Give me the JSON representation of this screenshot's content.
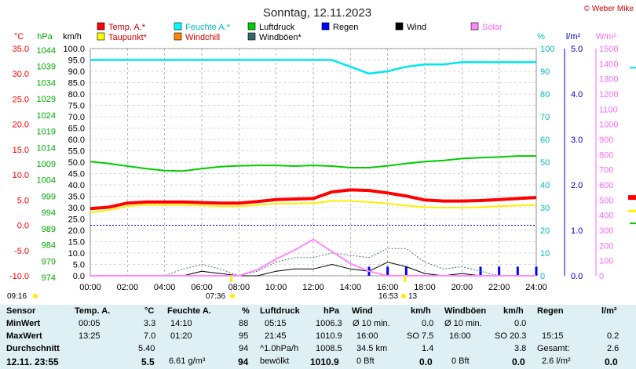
{
  "title": "Sonntag, 12.11.2023",
  "credit": "© Weber Mike",
  "legend": [
    {
      "name": "Temp. A.*",
      "color": "#ff0000"
    },
    {
      "name": "Feuchte A.*",
      "color": "#00ffff"
    },
    {
      "name": "Luftdruck",
      "color": "#00cc00"
    },
    {
      "name": "Regen",
      "color": "#0000ff"
    },
    {
      "name": "Wind",
      "color": "#000000"
    },
    {
      "name": "Solar",
      "color": "#ff88ff"
    },
    {
      "name": "Taupunkt*",
      "color": "#ffff00"
    },
    {
      "name": "Windchill",
      "color": "#ff8800"
    },
    {
      "name": "Windböen*",
      "color": "#336666"
    }
  ],
  "axis_units": {
    "temp": "°C",
    "pressure": "hPa",
    "wind": "km/h",
    "humidity": "%",
    "rain": "l/m²",
    "solar": "W/m²"
  },
  "chart_data": {
    "type": "line",
    "x_ticks": [
      "00:00",
      "02:00",
      "04:00",
      "06:00",
      "08:00",
      "10:00",
      "12:00",
      "14:00",
      "16:00",
      "18:00",
      "20:00",
      "22:00",
      "24:00"
    ],
    "temp_ticks": [
      "35.0",
      "30.0",
      "25.0",
      "20.0",
      "15.0",
      "10.0",
      "5.0",
      "0.0",
      "-5.0",
      "-10.0"
    ],
    "pressure_ticks": [
      "1044",
      "1039",
      "1034",
      "1029",
      "1024",
      "1019",
      "1014",
      "1009",
      "1004",
      "999",
      "994",
      "989",
      "984",
      "979",
      "974"
    ],
    "wind_ticks": [
      "100.0",
      "95.0",
      "90.0",
      "85.0",
      "80.0",
      "75.0",
      "70.0",
      "65.0",
      "60.0",
      "55.0",
      "50.0",
      "45.0",
      "40.0",
      "35.0",
      "30.0",
      "25.0",
      "20.0",
      "15.0",
      "10.0",
      "5.0",
      "0.0"
    ],
    "humidity_ticks": [
      "100",
      "90",
      "80",
      "70",
      "60",
      "50",
      "40",
      "30",
      "20",
      "10",
      "0"
    ],
    "rain_ticks": [
      "5.0",
      "4.0",
      "3.0",
      "2.0",
      "1.0",
      "0.0"
    ],
    "solar_ticks": [
      "1500",
      "1400",
      "1300",
      "1200",
      "1100",
      "1000",
      "900",
      "800",
      "700",
      "600",
      "500",
      "400",
      "300",
      "200",
      "100",
      "0"
    ],
    "temp_range": [
      -10,
      35
    ],
    "pressure_range": [
      974,
      1044
    ],
    "wind_range": [
      0,
      100
    ],
    "humidity_range": [
      0,
      100
    ],
    "rain_range": [
      0,
      5
    ],
    "solar_range": [
      0,
      1500
    ],
    "hours": [
      0,
      1,
      2,
      3,
      4,
      5,
      6,
      7,
      8,
      9,
      10,
      11,
      12,
      13,
      14,
      15,
      16,
      17,
      18,
      19,
      20,
      21,
      22,
      23,
      24
    ],
    "temperature": [
      3.3,
      3.6,
      4.4,
      4.6,
      4.6,
      4.6,
      4.5,
      4.4,
      4.4,
      4.7,
      5.1,
      5.2,
      5.3,
      6.6,
      7.0,
      6.9,
      6.4,
      5.8,
      5.0,
      4.8,
      4.8,
      4.9,
      5.1,
      5.3,
      5.5
    ],
    "dewpoint": [
      2.5,
      3.0,
      3.8,
      4.0,
      4.0,
      4.0,
      3.9,
      3.8,
      3.8,
      4.0,
      4.3,
      4.3,
      4.4,
      4.8,
      4.8,
      4.6,
      4.3,
      3.9,
      3.6,
      3.5,
      3.5,
      3.6,
      3.8,
      3.9,
      4.0
    ],
    "humidity": [
      95,
      95,
      95,
      95,
      95,
      95,
      95,
      95,
      95,
      95,
      95,
      95,
      95,
      95,
      92,
      89,
      90,
      92,
      93,
      93,
      94,
      94,
      94,
      94,
      94
    ],
    "pressure": [
      1009.2,
      1008.6,
      1007.8,
      1007.0,
      1006.4,
      1006.3,
      1007.0,
      1007.6,
      1007.9,
      1008.0,
      1008.0,
      1007.8,
      1008.0,
      1007.8,
      1007.3,
      1007.3,
      1007.9,
      1008.6,
      1009.2,
      1009.5,
      1010.1,
      1010.4,
      1010.6,
      1010.9,
      1010.9
    ],
    "solar": [
      0,
      0,
      0,
      0,
      0,
      0,
      0,
      0,
      0,
      40,
      110,
      170,
      240,
      160,
      80,
      30,
      0,
      0,
      0,
      0,
      0,
      0,
      0,
      0,
      0
    ],
    "wind": [
      0,
      0,
      0,
      0,
      0,
      0,
      2,
      1,
      0,
      0,
      2,
      3,
      3,
      5,
      3,
      2,
      6,
      4,
      1,
      0,
      1,
      0,
      0,
      0,
      0
    ],
    "gusts": [
      0,
      0,
      0,
      0,
      0,
      3,
      5,
      3,
      0,
      2,
      6,
      8,
      8,
      10,
      9,
      8,
      12,
      12,
      6,
      3,
      4,
      2,
      0,
      0,
      0
    ],
    "rain": [
      0,
      0,
      0,
      0,
      0,
      0,
      0,
      0,
      0,
      0,
      0,
      0,
      0,
      0,
      0,
      0.2,
      0.2,
      0.2,
      0,
      0,
      0,
      0.2,
      0.2,
      0.2,
      0.2
    ],
    "markers": {
      "sunrise": "07:36",
      "sunset": "16:53",
      "moonrise": "09:16",
      "moonset_day": "13"
    }
  },
  "table": {
    "headers": [
      "Sensor",
      "Temp. A.",
      "°C",
      "Feuchte A.",
      "%",
      "Luftdruck",
      "hPa",
      "Wind",
      "km/h",
      "Windböen",
      "km/h",
      "Regen",
      "l/m²"
    ],
    "min": {
      "label": "MinWert",
      "temp_time": "00:05",
      "temp": "3.3",
      "hum_time": "14:10",
      "hum": "88",
      "pres_time": "05:15",
      "pres": "1006.3",
      "wind_label": "Ø 10 min.",
      "wind": "0.0",
      "gust_label": "Ø 10 min.",
      "gust": "0.0",
      "rain_label": "",
      "rain": ""
    },
    "max": {
      "label": "MaxWert",
      "temp_time": "13:25",
      "temp": "7.0",
      "hum_time": "01:20",
      "hum": "95",
      "pres_time": "21:45",
      "pres": "1010.9",
      "wind_label": "16:00",
      "wind_dir": "SO 7.5",
      "gust_label": "16:00",
      "gust_dir": "SO 20.3",
      "rain_label": "15:15",
      "rain": "0.2"
    },
    "avg": {
      "label": "Durchschnitt",
      "temp": "5.40",
      "hum": "94",
      "pres_label": "^1.0hPa/h",
      "pres": "1008.5",
      "wind_label": "34.5 km",
      "wind": "1.4",
      "gust": "3.8",
      "rain_label": "Gesamt:",
      "rain": "2.6"
    },
    "now": {
      "label": "12.11. 23:55",
      "temp": "5.5",
      "hum_label": "6.61 g/m³",
      "hum": "94",
      "pres_label": "bewölkt",
      "pres": "1010.9",
      "wind_label": "0 Bft",
      "wind": "0.0",
      "gust_label": "0 Bft",
      "gust": "0.0",
      "rain_label": "2.6 l/m²",
      "rain": "0.0"
    }
  }
}
